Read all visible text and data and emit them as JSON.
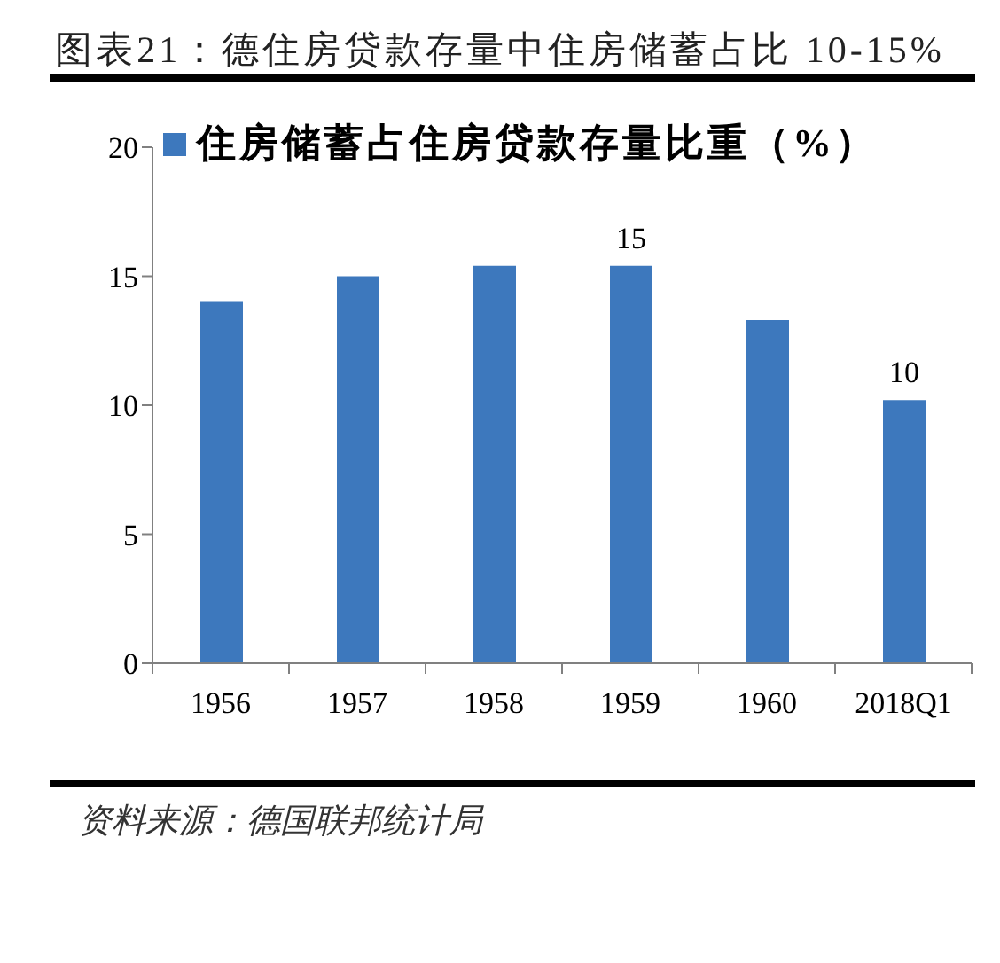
{
  "chart_data": {
    "type": "bar",
    "title": "图表21：德住房贷款存量中住房储蓄占比 10-15%",
    "categories": [
      "1956",
      "1957",
      "1958",
      "1959",
      "1960",
      "2018Q1"
    ],
    "series": [
      {
        "name": "住房储蓄占住房贷款存量比重（%）",
        "color": "#3d78bd",
        "values": [
          14.0,
          15.0,
          15.4,
          15.4,
          13.3,
          10.2
        ],
        "value_labels": [
          null,
          null,
          null,
          "15",
          null,
          "10"
        ]
      }
    ],
    "ylim": [
      0,
      20
    ],
    "yticks": [
      0,
      5,
      10,
      15,
      20
    ],
    "legend": "top left",
    "annotations": [
      "资料来源：德国联邦统计局"
    ]
  }
}
